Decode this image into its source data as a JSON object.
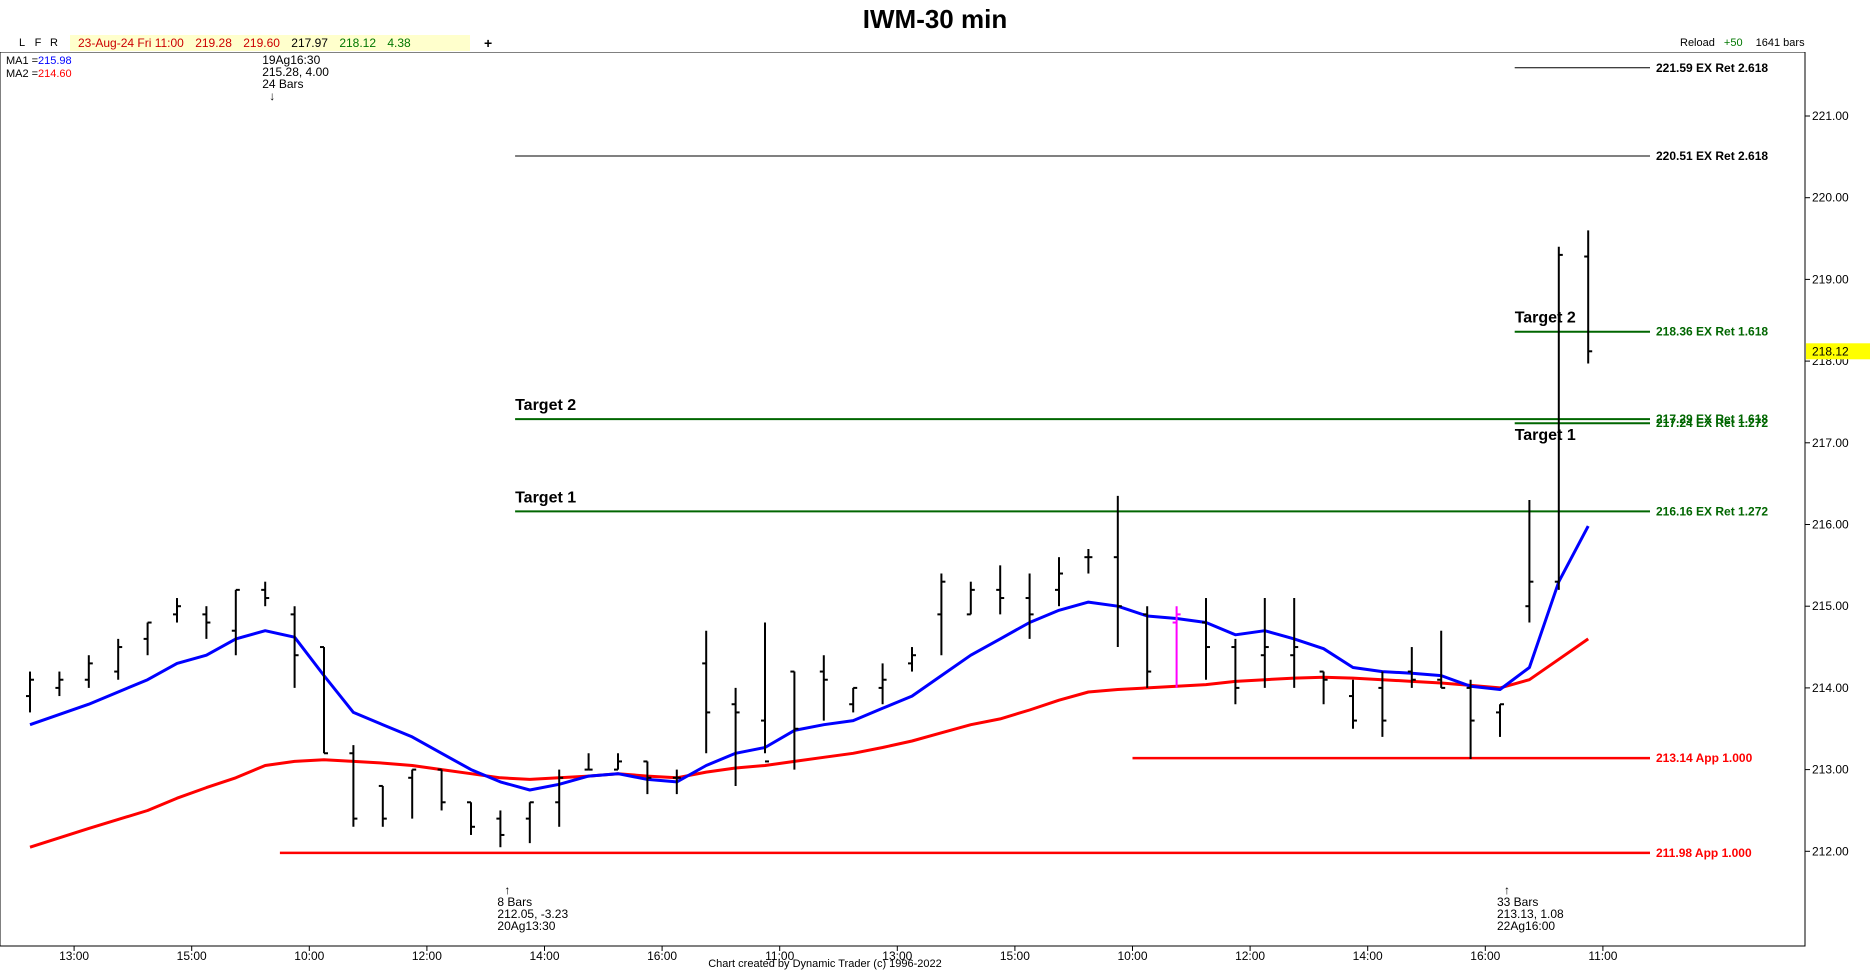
{
  "title": "IWM-30 min",
  "toolbar": {
    "buttons": [
      "L",
      "F",
      "R"
    ],
    "date": "23-Aug-24 Fri 11:00",
    "open": "219.28",
    "high": "219.60",
    "low": "217.97",
    "close": "218.12",
    "change": "4.38",
    "plus": "+",
    "reload": "Reload",
    "plus50": "+50",
    "bars": "1641 bars"
  },
  "indicators": [
    {
      "label": "MA1 =",
      "value": "215.98",
      "color": "#0000ff"
    },
    {
      "label": "MA2 =",
      "value": "214.60",
      "color": "#ff0000"
    }
  ],
  "footer": "Chart created by Dynamic Trader  (c) 1996-2022",
  "chart_data": {
    "type": "ohlc",
    "ylim": [
      211.0,
      222.2
    ],
    "y_ticks": [
      "212.00",
      "213.00",
      "214.00",
      "215.00",
      "216.00",
      "217.00",
      "218.00",
      "219.00",
      "220.00",
      "221.00"
    ],
    "x_labels": [
      "13:00",
      "15:00",
      "10:00",
      "12:00",
      "14:00",
      "16:00",
      "11:00",
      "13:00",
      "15:00",
      "10:00",
      "12:00",
      "14:00",
      "16:00",
      "11:00"
    ],
    "x_label_bars": [
      1.5,
      5.5,
      9.5,
      13.5,
      17.5,
      21.5,
      25.5,
      29.5,
      33.5,
      37.5,
      41.5,
      45.5,
      49.5,
      53.5
    ],
    "last_price": "218.12",
    "bars": [
      {
        "o": 213.9,
        "h": 214.2,
        "l": 213.7,
        "c": 214.1
      },
      {
        "o": 214.0,
        "h": 214.2,
        "l": 213.9,
        "c": 214.1
      },
      {
        "o": 214.1,
        "h": 214.4,
        "l": 214.0,
        "c": 214.3
      },
      {
        "o": 214.2,
        "h": 214.6,
        "l": 214.1,
        "c": 214.5
      },
      {
        "o": 214.6,
        "h": 214.8,
        "l": 214.4,
        "c": 214.8
      },
      {
        "o": 214.9,
        "h": 215.1,
        "l": 214.8,
        "c": 215.0
      },
      {
        "o": 214.9,
        "h": 215.0,
        "l": 214.6,
        "c": 214.8
      },
      {
        "o": 214.7,
        "h": 215.2,
        "l": 214.4,
        "c": 215.2
      },
      {
        "o": 215.2,
        "h": 215.3,
        "l": 215.0,
        "c": 215.1
      },
      {
        "o": 214.9,
        "h": 215.0,
        "l": 214.0,
        "c": 214.4
      },
      {
        "o": 214.5,
        "h": 214.5,
        "l": 213.2,
        "c": 213.2
      },
      {
        "o": 213.2,
        "h": 213.3,
        "l": 212.3,
        "c": 212.4
      },
      {
        "o": 212.8,
        "h": 212.8,
        "l": 212.3,
        "c": 212.4
      },
      {
        "o": 212.9,
        "h": 213.0,
        "l": 212.4,
        "c": 213.0
      },
      {
        "o": 213.0,
        "h": 213.0,
        "l": 212.5,
        "c": 212.6
      },
      {
        "o": 212.6,
        "h": 212.6,
        "l": 212.2,
        "c": 212.3
      },
      {
        "o": 212.4,
        "h": 212.5,
        "l": 212.05,
        "c": 212.2
      },
      {
        "o": 212.4,
        "h": 212.6,
        "l": 212.1,
        "c": 212.6
      },
      {
        "o": 212.6,
        "h": 213.0,
        "l": 212.3,
        "c": 212.9
      },
      {
        "o": 213.0,
        "h": 213.2,
        "l": 213.0,
        "c": 213.0
      },
      {
        "o": 213.0,
        "h": 213.2,
        "l": 213.0,
        "c": 213.1
      },
      {
        "o": 213.1,
        "h": 213.1,
        "l": 212.7,
        "c": 212.9
      },
      {
        "o": 212.9,
        "h": 213.0,
        "l": 212.7,
        "c": 212.9
      },
      {
        "o": 214.3,
        "h": 214.7,
        "l": 213.2,
        "c": 213.7
      },
      {
        "o": 213.8,
        "h": 214.0,
        "l": 212.8,
        "c": 213.7
      },
      {
        "o": 213.6,
        "h": 214.8,
        "l": 213.2,
        "c": 213.1
      },
      {
        "o": 214.2,
        "h": 214.2,
        "l": 213.0,
        "c": 213.5
      },
      {
        "o": 214.2,
        "h": 214.4,
        "l": 213.6,
        "c": 214.1
      },
      {
        "o": 213.8,
        "h": 214.0,
        "l": 213.7,
        "c": 214.0
      },
      {
        "o": 214.0,
        "h": 214.3,
        "l": 213.8,
        "c": 214.1
      },
      {
        "o": 214.3,
        "h": 214.5,
        "l": 214.2,
        "c": 214.4
      },
      {
        "o": 214.9,
        "h": 215.4,
        "l": 214.4,
        "c": 215.3
      },
      {
        "o": 214.9,
        "h": 215.3,
        "l": 214.9,
        "c": 215.2
      },
      {
        "o": 215.2,
        "h": 215.5,
        "l": 214.9,
        "c": 215.1
      },
      {
        "o": 215.1,
        "h": 215.4,
        "l": 214.6,
        "c": 214.9
      },
      {
        "o": 215.2,
        "h": 215.6,
        "l": 215.0,
        "c": 215.4
      },
      {
        "o": 215.6,
        "h": 215.7,
        "l": 215.4,
        "c": 215.6
      },
      {
        "o": 215.6,
        "h": 216.35,
        "l": 214.5,
        "c": 215.0
      },
      {
        "o": 214.9,
        "h": 215.0,
        "l": 214.0,
        "c": 214.2
      },
      {
        "o": 214.8,
        "h": 215.0,
        "l": 214.0,
        "c": 214.9
      },
      {
        "o": 214.8,
        "h": 215.1,
        "l": 214.1,
        "c": 214.5
      },
      {
        "o": 214.5,
        "h": 214.6,
        "l": 213.8,
        "c": 214.0
      },
      {
        "o": 214.4,
        "h": 215.1,
        "l": 214.0,
        "c": 214.5
      },
      {
        "o": 214.4,
        "h": 215.1,
        "l": 214.0,
        "c": 214.5
      },
      {
        "o": 214.2,
        "h": 214.2,
        "l": 213.8,
        "c": 214.1
      },
      {
        "o": 213.9,
        "h": 214.1,
        "l": 213.5,
        "c": 213.6
      },
      {
        "o": 214.0,
        "h": 214.2,
        "l": 213.4,
        "c": 213.6
      },
      {
        "o": 214.2,
        "h": 214.5,
        "l": 214.0,
        "c": 214.1
      },
      {
        "o": 214.1,
        "h": 214.7,
        "l": 214.0,
        "c": 214.0
      },
      {
        "o": 214.0,
        "h": 214.1,
        "l": 213.13,
        "c": 213.6
      },
      {
        "o": 213.7,
        "h": 213.8,
        "l": 213.4,
        "c": 213.8
      },
      {
        "o": 215.0,
        "h": 216.3,
        "l": 214.8,
        "c": 215.3
      },
      {
        "o": 215.3,
        "h": 219.4,
        "l": 215.2,
        "c": 219.3
      },
      {
        "o": 219.28,
        "h": 219.6,
        "l": 217.97,
        "c": 218.12
      }
    ],
    "highlight_bar": {
      "index": 39,
      "color": "#ff00ff"
    },
    "ma1": {
      "name": "MA1",
      "color": "#0000ff",
      "points": [
        [
          0,
          213.55
        ],
        [
          2,
          213.8
        ],
        [
          4,
          214.1
        ],
        [
          5,
          214.3
        ],
        [
          6,
          214.4
        ],
        [
          7,
          214.6
        ],
        [
          8,
          214.7
        ],
        [
          9,
          214.62
        ],
        [
          10,
          214.15
        ],
        [
          11,
          213.7
        ],
        [
          12,
          213.55
        ],
        [
          13,
          213.4
        ],
        [
          14,
          213.2
        ],
        [
          15,
          213.0
        ],
        [
          16,
          212.85
        ],
        [
          17,
          212.75
        ],
        [
          18,
          212.82
        ],
        [
          19,
          212.92
        ],
        [
          20,
          212.95
        ],
        [
          21,
          212.88
        ],
        [
          22,
          212.85
        ],
        [
          23,
          213.05
        ],
        [
          24,
          213.2
        ],
        [
          25,
          213.27
        ],
        [
          26,
          213.48
        ],
        [
          27,
          213.55
        ],
        [
          28,
          213.6
        ],
        [
          29,
          213.75
        ],
        [
          30,
          213.9
        ],
        [
          31,
          214.15
        ],
        [
          32,
          214.4
        ],
        [
          33,
          214.6
        ],
        [
          34,
          214.8
        ],
        [
          35,
          214.95
        ],
        [
          36,
          215.05
        ],
        [
          37,
          215.0
        ],
        [
          38,
          214.88
        ],
        [
          39,
          214.85
        ],
        [
          40,
          214.8
        ],
        [
          41,
          214.65
        ],
        [
          42,
          214.7
        ],
        [
          43,
          214.6
        ],
        [
          44,
          214.48
        ],
        [
          45,
          214.25
        ],
        [
          46,
          214.2
        ],
        [
          47,
          214.18
        ],
        [
          48,
          214.15
        ],
        [
          49,
          214.02
        ],
        [
          50,
          213.98
        ],
        [
          51,
          214.25
        ],
        [
          52,
          215.3
        ],
        [
          53,
          215.98
        ]
      ]
    },
    "ma2": {
      "name": "MA2",
      "color": "#ff0000",
      "points": [
        [
          0,
          212.05
        ],
        [
          2,
          212.28
        ],
        [
          4,
          212.5
        ],
        [
          5,
          212.65
        ],
        [
          6,
          212.78
        ],
        [
          7,
          212.9
        ],
        [
          8,
          213.05
        ],
        [
          9,
          213.1
        ],
        [
          10,
          213.12
        ],
        [
          11,
          213.1
        ],
        [
          12,
          213.08
        ],
        [
          13,
          213.05
        ],
        [
          14,
          213.0
        ],
        [
          15,
          212.95
        ],
        [
          16,
          212.9
        ],
        [
          17,
          212.88
        ],
        [
          18,
          212.9
        ],
        [
          19,
          212.92
        ],
        [
          20,
          212.95
        ],
        [
          21,
          212.92
        ],
        [
          22,
          212.9
        ],
        [
          23,
          212.97
        ],
        [
          24,
          213.02
        ],
        [
          25,
          213.05
        ],
        [
          26,
          213.1
        ],
        [
          27,
          213.15
        ],
        [
          28,
          213.2
        ],
        [
          29,
          213.27
        ],
        [
          30,
          213.35
        ],
        [
          31,
          213.45
        ],
        [
          32,
          213.55
        ],
        [
          33,
          213.62
        ],
        [
          34,
          213.73
        ],
        [
          35,
          213.85
        ],
        [
          36,
          213.95
        ],
        [
          37,
          213.98
        ],
        [
          38,
          214.0
        ],
        [
          39,
          214.02
        ],
        [
          40,
          214.04
        ],
        [
          41,
          214.08
        ],
        [
          42,
          214.1
        ],
        [
          43,
          214.12
        ],
        [
          44,
          214.13
        ],
        [
          45,
          214.12
        ],
        [
          46,
          214.1
        ],
        [
          47,
          214.08
        ],
        [
          48,
          214.06
        ],
        [
          49,
          214.03
        ],
        [
          50,
          214.0
        ],
        [
          51,
          214.1
        ],
        [
          52,
          214.35
        ],
        [
          53,
          214.6
        ]
      ]
    },
    "levels": [
      {
        "price": 221.59,
        "label": "221.59 EX Ret 2.618",
        "color": "#000000",
        "width": 1,
        "from_bar": 50.5,
        "label_color": "#000000"
      },
      {
        "price": 220.51,
        "label": "220.51 EX Ret 2.618",
        "color": "#000000",
        "width": 1,
        "from_bar": 16.5,
        "label_color": "#000000"
      },
      {
        "price": 218.36,
        "label": "218.36 EX Ret 1.618",
        "color": "#006600",
        "width": 2,
        "from_bar": 50.5,
        "label_color": "#006600"
      },
      {
        "price": 217.29,
        "label": "217.29 EX Ret 1.618",
        "color": "#006600",
        "width": 2,
        "from_bar": 16.5,
        "label_color": "#006600"
      },
      {
        "price": 217.24,
        "label": "217.24 EX Ret 1.272",
        "color": "#006600",
        "width": 2,
        "from_bar": 50.5,
        "label_color": "#006600"
      },
      {
        "price": 216.16,
        "label": "216.16 EX Ret 1.272",
        "color": "#006600",
        "width": 2,
        "from_bar": 16.5,
        "label_color": "#006600"
      },
      {
        "price": 213.14,
        "label": "213.14 App 1.000",
        "color": "#ff0000",
        "width": 2.5,
        "from_bar": 37.5,
        "label_color": "#ff0000"
      },
      {
        "price": 211.98,
        "label": "211.98 App 1.000",
        "color": "#ff0000",
        "width": 2.5,
        "from_bar": 8.5,
        "label_color": "#ff0000"
      }
    ],
    "target_labels": [
      {
        "text": "Target 2",
        "bar": 16.5,
        "price": 217.29,
        "pos": "above"
      },
      {
        "text": "Target 1",
        "bar": 16.5,
        "price": 216.16,
        "pos": "above"
      },
      {
        "text": "Target 2",
        "bar": 50.5,
        "price": 218.36,
        "pos": "above"
      },
      {
        "text": "Target 1",
        "bar": 50.5,
        "price": 217.24,
        "pos": "below"
      }
    ],
    "annotations": [
      {
        "bar": 8,
        "lines": [
          "19Ag16:30",
          "215.28, 4.00",
          "24 Bars",
          "↓"
        ],
        "pos": "top"
      },
      {
        "bar": 16,
        "lines": [
          "↑",
          "8 Bars",
          "212.05, -3.23",
          "20Ag13:30"
        ],
        "pos": "bottom"
      },
      {
        "bar": 50,
        "lines": [
          "↑",
          "33 Bars",
          "213.13, 1.08",
          "22Ag16:00"
        ],
        "pos": "bottom"
      }
    ]
  }
}
